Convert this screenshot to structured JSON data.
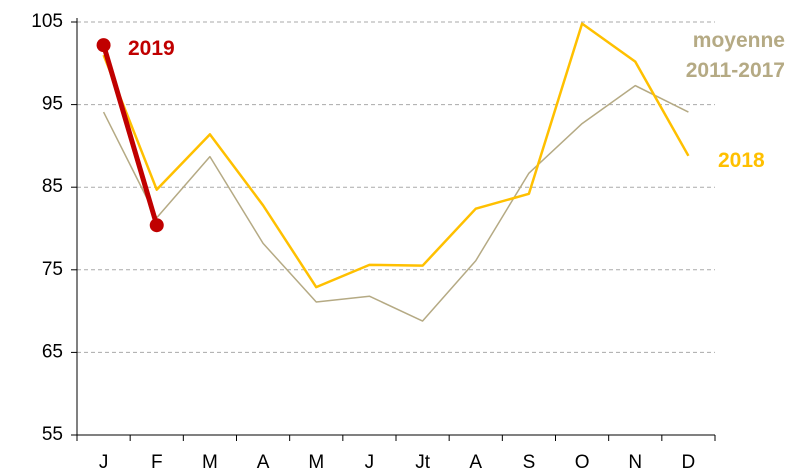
{
  "chart_data": {
    "type": "line",
    "categories": [
      "J",
      "F",
      "M",
      "A",
      "M",
      "J",
      "Jt",
      "A",
      "S",
      "O",
      "N",
      "D"
    ],
    "series": [
      {
        "name": "moyenne 2011-2017",
        "color": "#b5aa84",
        "values": [
          94.1,
          81.3,
          88.7,
          78.2,
          71.1,
          71.8,
          68.8,
          76.1,
          86.7,
          92.7,
          97.3,
          94.1
        ]
      },
      {
        "name": "2018",
        "color": "#ffc000",
        "values": [
          101.0,
          84.7,
          91.4,
          82.8,
          72.9,
          75.6,
          75.5,
          82.4,
          84.2,
          104.8,
          100.2,
          88.8
        ]
      },
      {
        "name": "2019",
        "color": "#c00000",
        "values": [
          102.2,
          80.4,
          null,
          null,
          null,
          null,
          null,
          null,
          null,
          null,
          null,
          null
        ]
      }
    ],
    "ylim": [
      55,
      105
    ],
    "yticks": [
      55,
      65,
      75,
      85,
      95,
      105
    ],
    "grid": true
  }
}
